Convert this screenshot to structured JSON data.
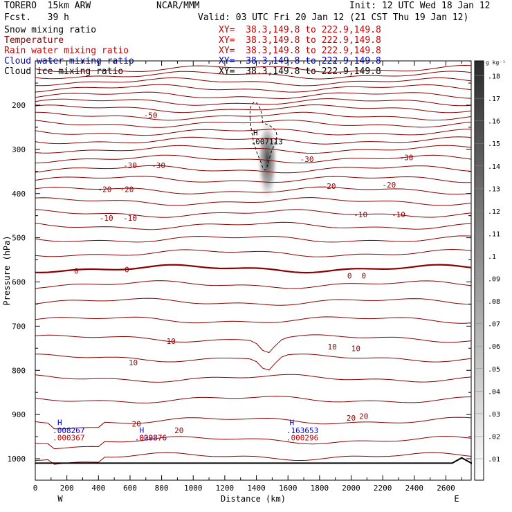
{
  "header": {
    "model": "TORERO  15km ARW",
    "center": "NCAR/MMM",
    "init": "Init: 12 UTC Wed 18 Jan 12",
    "fcst": "Fcst.   39 h",
    "valid": "Valid: 03 UTC Fri 20 Jan 12 (21 CST Thu 19 Jan 12)"
  },
  "fields": [
    {
      "label": "Snow mixing ratio",
      "xy": "XY=  38.3,149.8 to 222.9,149.8",
      "color": "#000000"
    },
    {
      "label": "Temperature",
      "xy": "XY=  38.3,149.8 to 222.9,149.8",
      "color": "#8b0000"
    },
    {
      "label": "Rain water mixing ratio",
      "xy": "XY=  38.3,149.8 to 222.9,149.8",
      "color": "#cc0000"
    },
    {
      "label": "Cloud water mixing ratio",
      "xy": "XY=  38.3,149.8 to 222.9,149.8",
      "color": "#0000cc"
    },
    {
      "label": "Cloud ice mixing ratio",
      "xy": "XY=  38.3,149.8 to 222.9,149.8",
      "color": "#000000"
    }
  ],
  "chart_data": {
    "type": "cross-section",
    "xlabel": "Distance (km)",
    "ylabel": "Pressure (hPa)",
    "xlim": [
      0,
      2760
    ],
    "ylim": [
      1050,
      100
    ],
    "xticks": [
      0,
      200,
      400,
      600,
      800,
      1000,
      1200,
      1400,
      1600,
      1800,
      2000,
      2200,
      2400,
      2600
    ],
    "yticks": [
      200,
      300,
      400,
      500,
      600,
      700,
      800,
      900,
      1000
    ],
    "left_end": "W",
    "right_end": "E",
    "colorbar": {
      "unit": "g kg⁻¹",
      "ticks": [
        ".01",
        ".02",
        ".03",
        ".04",
        ".05",
        ".06",
        ".07",
        ".08",
        ".09",
        ".1",
        ".11",
        ".12",
        ".13",
        ".14",
        ".15",
        ".16",
        ".17",
        ".18"
      ]
    },
    "temperature_labels": [
      {
        "text": "-50",
        "x": 730,
        "p": 223
      },
      {
        "text": "-30",
        "x": 600,
        "p": 336
      },
      {
        "text": "-30",
        "x": 780,
        "p": 336
      },
      {
        "text": "-30",
        "x": 1720,
        "p": 322
      },
      {
        "text": "-30",
        "x": 2350,
        "p": 318
      },
      {
        "text": "-20",
        "x": 440,
        "p": 390
      },
      {
        "text": "-20",
        "x": 580,
        "p": 390
      },
      {
        "text": "-20",
        "x": 1860,
        "p": 383
      },
      {
        "text": "-20",
        "x": 2240,
        "p": 380
      },
      {
        "text": "-10",
        "x": 450,
        "p": 455
      },
      {
        "text": "-10",
        "x": 600,
        "p": 455
      },
      {
        "text": "-10",
        "x": 2060,
        "p": 447
      },
      {
        "text": "-10",
        "x": 2300,
        "p": 447
      },
      {
        "text": "0",
        "x": 260,
        "p": 575
      },
      {
        "text": "0",
        "x": 580,
        "p": 572
      },
      {
        "text": "0",
        "x": 1990,
        "p": 586
      },
      {
        "text": "0",
        "x": 2080,
        "p": 586
      },
      {
        "text": "10",
        "x": 860,
        "p": 734
      },
      {
        "text": "10",
        "x": 620,
        "p": 782
      },
      {
        "text": "10",
        "x": 1880,
        "p": 746
      },
      {
        "text": "10",
        "x": 2030,
        "p": 750
      },
      {
        "text": "20",
        "x": 640,
        "p": 921
      },
      {
        "text": "20",
        "x": 910,
        "p": 936
      },
      {
        "text": "20",
        "x": 2000,
        "p": 908
      },
      {
        "text": "20",
        "x": 2080,
        "p": 904
      }
    ],
    "maxima": [
      {
        "text": "H",
        "x": 140,
        "p": 918,
        "color": "#0000cc"
      },
      {
        "text": ".008267",
        "x": 110,
        "p": 936,
        "color": "#0000cc"
      },
      {
        "text": ".000367",
        "x": 110,
        "p": 952,
        "color": "#cc0000"
      },
      {
        "text": "H",
        "x": 660,
        "p": 935,
        "color": "#0000cc"
      },
      {
        "text": ".029876",
        "x": 630,
        "p": 952,
        "color": "#0000cc"
      },
      {
        "text": ".000376",
        "x": 630,
        "p": 952,
        "color": "#cc0000"
      },
      {
        "text": "H",
        "x": 1610,
        "p": 918,
        "color": "#0000cc"
      },
      {
        "text": ".163653",
        "x": 1590,
        "p": 936,
        "color": "#0000cc"
      },
      {
        "text": ".000296",
        "x": 1590,
        "p": 952,
        "color": "#cc0000"
      },
      {
        "text": "H",
        "x": 1380,
        "p": 262,
        "color": "#000000"
      },
      {
        "text": ".007113",
        "x": 1365,
        "p": 282,
        "color": "#000000"
      }
    ],
    "snow_max": {
      "x": 1470,
      "p": 330,
      "value": 0.12
    },
    "temperature_isotherms": {
      "interval": 5,
      "zero_line_emphasized": true,
      "color": "#8b0000"
    }
  }
}
